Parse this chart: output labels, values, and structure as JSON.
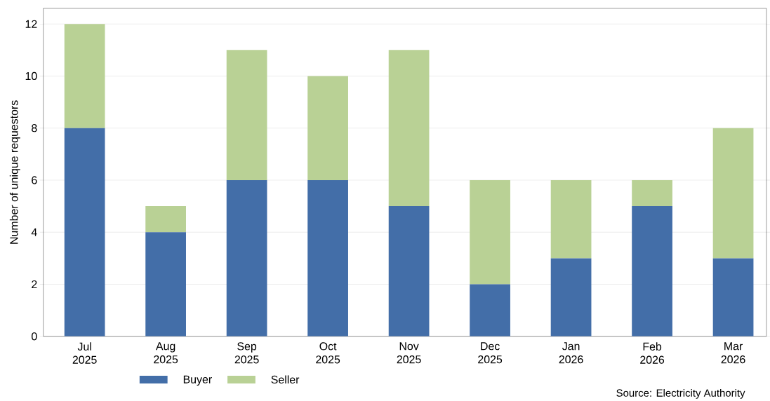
{
  "chart_data": {
    "type": "bar",
    "stacked": true,
    "ylabel": "Number of unique requestors",
    "categories": [
      "Jul 2025",
      "Aug 2025",
      "Sep 2025",
      "Oct 2025",
      "Nov 2025",
      "Dec 2025",
      "Jan 2026",
      "Feb 2026",
      "Mar 2026"
    ],
    "series": [
      {
        "name": "Buyer",
        "color": "#436ea8",
        "values": [
          8,
          4,
          6,
          6,
          5,
          2,
          3,
          5,
          3
        ]
      },
      {
        "name": "Seller",
        "color": "#b9d195",
        "values": [
          4,
          1,
          5,
          4,
          6,
          4,
          3,
          1,
          5
        ]
      }
    ],
    "ylim": [
      0,
      12.6
    ],
    "yticks": [
      0,
      2,
      4,
      6,
      8,
      10,
      12
    ],
    "grid": "y",
    "legend": "bottom",
    "annotations": [
      "Source: Electricity Authority"
    ]
  }
}
